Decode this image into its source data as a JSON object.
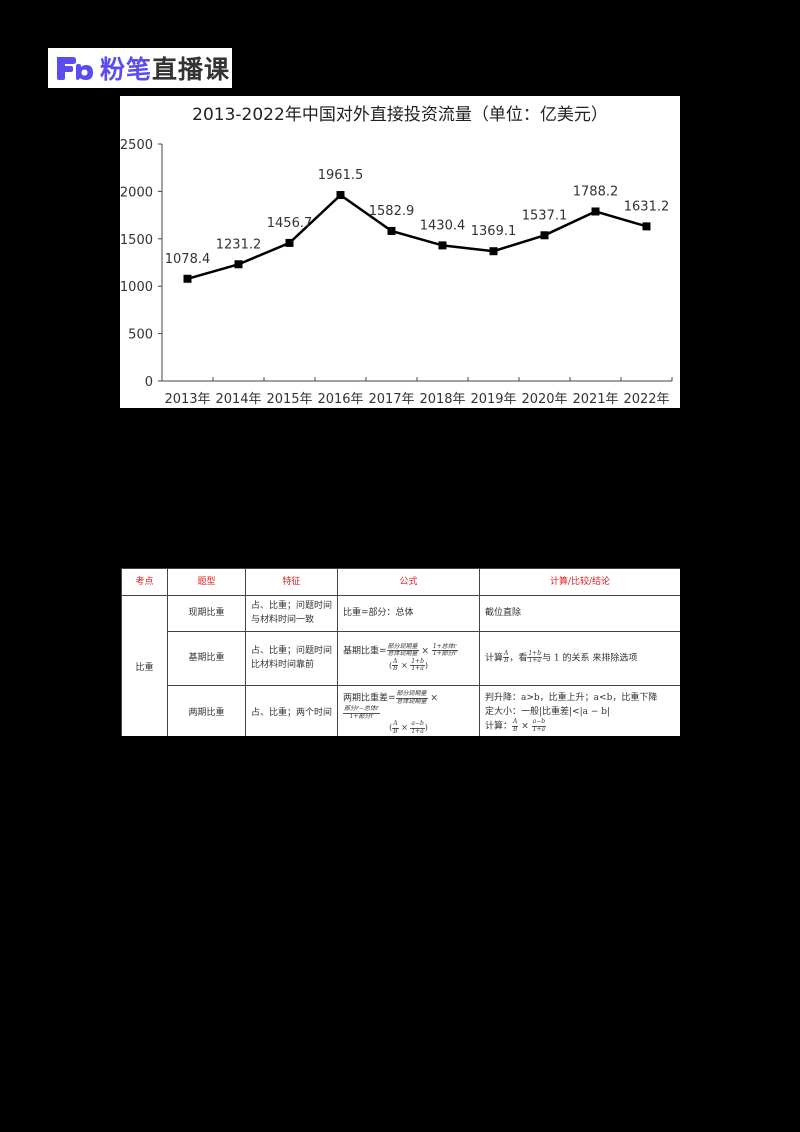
{
  "logo": {
    "mark_icon": "fenbi-fb-logo-icon",
    "brand": "粉笔",
    "sub": "直播课",
    "brand_color": "#5b4cf0"
  },
  "chart_data": {
    "type": "line",
    "title": "2013-2022年中国对外直接投资流量（单位：亿美元）",
    "xlabel": "",
    "ylabel": "",
    "categories": [
      "2013年",
      "2014年",
      "2015年",
      "2016年",
      "2017年",
      "2018年",
      "2019年",
      "2020年",
      "2021年",
      "2022年"
    ],
    "series": [
      {
        "name": "对外直接投资流量",
        "values": [
          1078.4,
          1231.2,
          1456.7,
          1961.5,
          1582.9,
          1430.4,
          1369.1,
          1537.1,
          1788.2,
          1631.2
        ]
      }
    ],
    "value_labels": [
      "1078.4",
      "1231.2",
      "1456.7",
      "1961.5",
      "1582.9",
      "1430.4",
      "1369.1",
      "1537.1",
      "1788.2",
      "1631.2"
    ],
    "yticks": [
      "0",
      "500",
      "1000",
      "1500",
      "2000",
      "2500"
    ],
    "ylim": [
      0,
      2500
    ],
    "grid": false,
    "legend": "none",
    "marker": "square",
    "line_color": "#000000"
  },
  "table": {
    "headers": [
      "考点",
      "题型",
      "特征",
      "公式",
      "计算/比较/结论"
    ],
    "header_color": "#e02020",
    "category": "比重",
    "rows": [
      {
        "type": "现期比重",
        "feature": "占、比重；问题时间与材料时间一致",
        "formula": "比重=部分：总体",
        "conclusion": "截位直除"
      },
      {
        "type": "基期比重",
        "feature": "占、比重；问题时间比材料时间靠前",
        "formula_prefix": "基期比重=",
        "formula_frac1_num": "部分现期量",
        "formula_frac1_den": "总体现期量",
        "formula_frac2_num": "1+总体r",
        "formula_frac2_den": "1+部分r",
        "formula_line2_prefix": "(",
        "formula_line2_a_num": "A",
        "formula_line2_a_den": "B",
        "formula_line2_b_num": "1+b",
        "formula_line2_b_den": "1+a",
        "formula_line2_suffix": ")",
        "conclusion_prefix": "计算",
        "conclusion_frac_num": "A",
        "conclusion_frac_den": "B",
        "conclusion_mid": "，看",
        "conclusion_frac2_num": "1+b",
        "conclusion_frac2_den": "1+a",
        "conclusion_suffix": "与 1 的关系 来排除选项"
      },
      {
        "type": "两期比重",
        "feature": "占、比重；两个时间",
        "formula_prefix": "两期比重差=",
        "formula_frac1_num": "部分现期量",
        "formula_frac1_den": "总体现期量",
        "formula_frac2_num": "部分r−总体r",
        "formula_frac2_den": "1+部分r",
        "formula_line2_a_num": "A",
        "formula_line2_a_den": "B",
        "formula_line2_b_num": "a−b",
        "formula_line2_b_den": "1+a",
        "conclusion_line1": "判升降：a>b，比重上升；a<b，比重下降",
        "conclusion_line2": "定大小：一般|比重差|<|a − b|",
        "conclusion_line3_prefix": "计算：",
        "conclusion_frac_num": "A",
        "conclusion_frac_den": "B",
        "conclusion_frac2_num": "a−b",
        "conclusion_frac2_den": "1+a"
      }
    ]
  }
}
